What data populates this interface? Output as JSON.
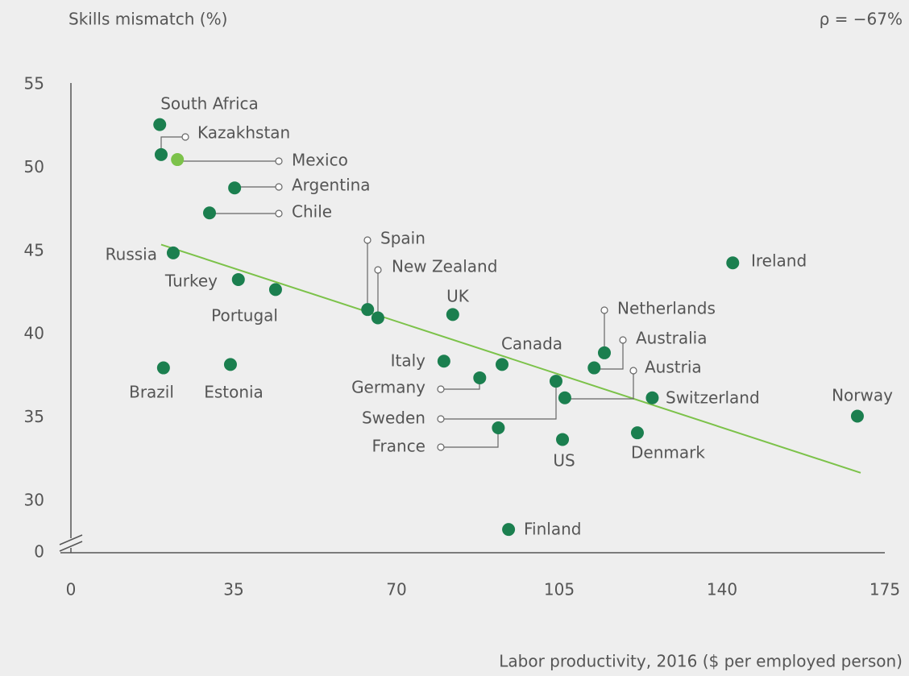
{
  "chart_data": {
    "type": "scatter",
    "title": "Skills mismatch (%)",
    "annotation": "ρ = −67%",
    "x_label": "Labor productivity, 2016 ($ per employed person)",
    "xlim": [
      0,
      175
    ],
    "xticks": [
      0,
      35,
      70,
      105,
      140,
      175
    ],
    "ylim": [
      27,
      55
    ],
    "yticks": [
      0,
      30,
      35,
      40,
      45,
      50,
      55
    ],
    "axis_break": true,
    "color": "#1b7f4f",
    "highlight": "Mexico",
    "highlight_color": "#7cc24a",
    "labels": [
      "South Africa",
      "Kazakhstan",
      "Mexico",
      "Argentina",
      "Chile",
      "Russia",
      "Turkey",
      "Portugal",
      "Spain",
      "New Zealand",
      "UK",
      "Brazil",
      "Estonia",
      "Italy",
      "Canada",
      "Germany",
      "Netherlands",
      "Australia",
      "Sweden",
      "Austria",
      "Switzerland",
      "Norway",
      "France",
      "US",
      "Denmark",
      "Ireland",
      "Finland"
    ],
    "x": [
      19.1,
      19.4,
      22.9,
      35.2,
      29.8,
      22.0,
      36.0,
      44.0,
      63.8,
      66.0,
      82.1,
      19.9,
      34.3,
      80.2,
      92.7,
      87.9,
      114.7,
      112.5,
      104.3,
      106.2,
      125.0,
      169.1,
      91.9,
      105.7,
      121.8,
      142.3,
      94.1
    ],
    "y": [
      52.6,
      50.8,
      50.5,
      48.8,
      47.3,
      44.9,
      43.3,
      42.7,
      41.5,
      41.0,
      41.2,
      38.0,
      38.2,
      38.4,
      38.2,
      37.4,
      38.9,
      38.0,
      37.2,
      36.2,
      36.2,
      35.1,
      34.4,
      33.7,
      34.1,
      44.3,
      28.3
    ],
    "trendline": {
      "color": "#7cc24a",
      "x": [
        19.4,
        169.8
      ],
      "y": [
        45.4,
        31.7
      ]
    }
  }
}
